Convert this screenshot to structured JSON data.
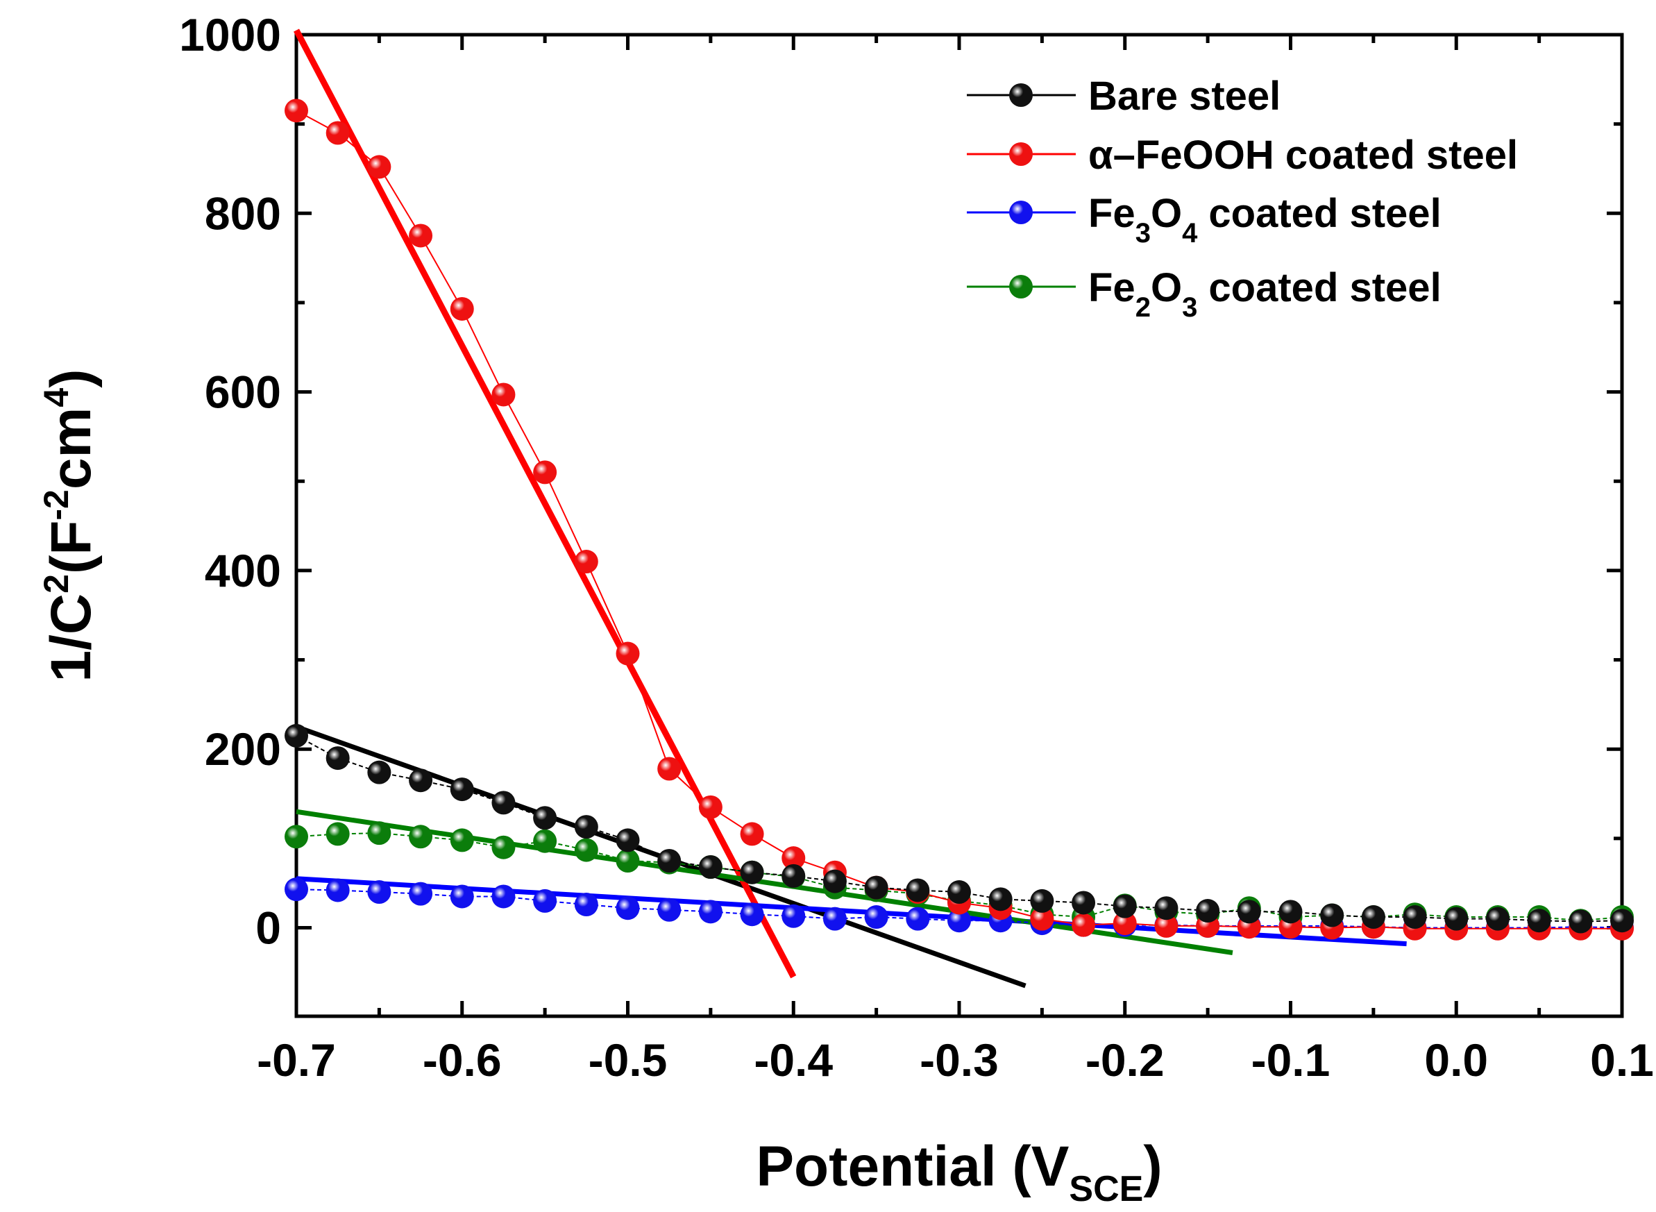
{
  "chart_data": {
    "type": "scatter",
    "xlabel": {
      "main": "Potential (V",
      "sub": "SCE",
      "end": ")"
    },
    "ylabel": {
      "a": "1/C",
      "a_sup": "2",
      "b": "(F",
      "b_sup": "-2",
      "c": "cm",
      "c_sup": "4",
      "d": ")"
    },
    "xlim": [
      -0.7,
      0.1
    ],
    "ylim": [
      -100,
      1000
    ],
    "xticks": [
      "-0.7",
      "-0.6",
      "-0.5",
      "-0.4",
      "-0.3",
      "-0.2",
      "-0.1",
      "0.0",
      "0.1"
    ],
    "yticks": [
      "0",
      "200",
      "400",
      "600",
      "800",
      "1000"
    ],
    "legend_position": "top-right",
    "x": [
      -0.7,
      -0.675,
      -0.65,
      -0.625,
      -0.6,
      -0.575,
      -0.55,
      -0.525,
      -0.5,
      -0.475,
      -0.45,
      -0.425,
      -0.4,
      -0.375,
      -0.35,
      -0.325,
      -0.3,
      -0.275,
      -0.25,
      -0.225,
      -0.2,
      -0.175,
      -0.15,
      -0.125,
      -0.1,
      -0.075,
      -0.05,
      -0.025,
      0.0,
      0.025,
      0.05,
      0.075,
      0.1
    ],
    "series": [
      {
        "name": "Bare steel",
        "color": "#000000",
        "marker_color": "#111111",
        "values": [
          215,
          190,
          174,
          165,
          155,
          140,
          123,
          113,
          98,
          75,
          68,
          62,
          58,
          52,
          45,
          42,
          40,
          32,
          30,
          28,
          24,
          22,
          19,
          18,
          18,
          14,
          12,
          12,
          10,
          10,
          8,
          7,
          8
        ],
        "fit": {
          "x": [
            -0.7,
            -0.26
          ],
          "y": [
            225,
            -65
          ]
        }
      },
      {
        "name": {
          "pre": "α–FeOOH coated steel"
        },
        "color": "#ff0000",
        "marker_color": "#ee1111",
        "values": [
          915,
          890,
          852,
          775,
          693,
          597,
          510,
          410,
          307,
          178,
          135,
          105,
          78,
          62,
          45,
          40,
          28,
          22,
          10,
          3,
          5,
          2,
          2,
          1,
          1,
          0,
          1,
          -1,
          -1,
          -1,
          -1,
          -1,
          -1
        ],
        "fit": {
          "x": [
            -0.7,
            -0.4
          ],
          "y": [
            1005,
            -55
          ]
        }
      },
      {
        "name": {
          "pre": "Fe",
          "sub1": "3",
          "mid": "O",
          "sub2": "4",
          "post": " coated steel"
        },
        "color": "#0000ff",
        "marker_color": "#1111ee",
        "values": [
          43,
          42,
          40,
          38,
          35,
          35,
          30,
          26,
          22,
          20,
          18,
          15,
          13,
          10,
          12,
          10,
          8,
          8,
          5,
          3,
          3,
          3,
          2,
          2,
          2,
          2,
          1,
          0,
          0,
          0,
          0,
          1,
          0
        ],
        "fit": {
          "x": [
            -0.7,
            -0.03
          ],
          "y": [
            55,
            -18
          ]
        }
      },
      {
        "name": {
          "pre": "Fe",
          "sub1": "2",
          "mid": "O",
          "sub2": "3",
          "post": " coated steel"
        },
        "color": "#008000",
        "marker_color": "#0b7d0b",
        "values": [
          102,
          105,
          106,
          102,
          98,
          90,
          97,
          87,
          75,
          73,
          68,
          62,
          57,
          45,
          42,
          38,
          30,
          25,
          15,
          12,
          25,
          18,
          15,
          22,
          12,
          14,
          12,
          15,
          12,
          12,
          12,
          8,
          12
        ],
        "fit": {
          "x": [
            -0.7,
            -0.135
          ],
          "y": [
            130,
            -28
          ]
        }
      }
    ]
  }
}
